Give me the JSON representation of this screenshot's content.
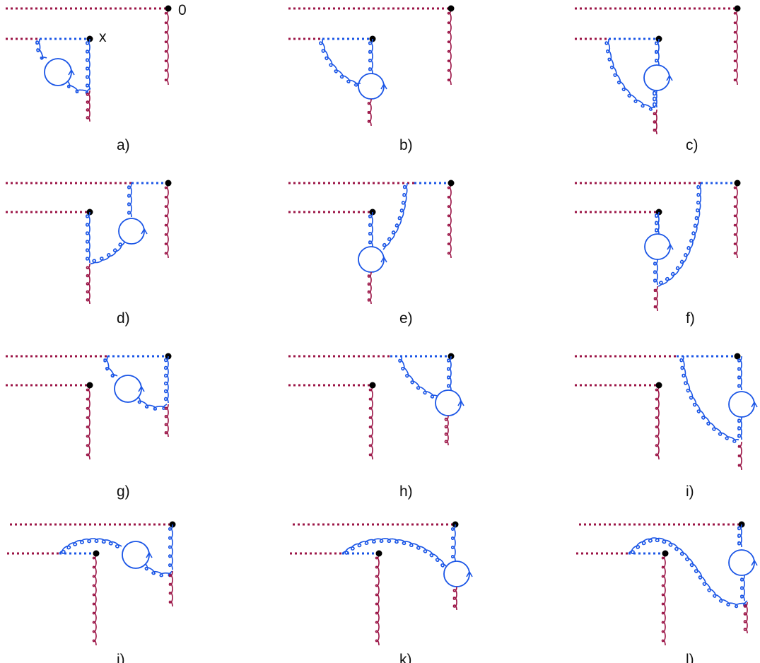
{
  "colors": {
    "dark_line": "#9b1446",
    "blue_line": "#1a55e6",
    "vertex": "#000000"
  },
  "point_labels": {
    "x": "x",
    "zero": "0"
  },
  "panels": [
    {
      "id": "a",
      "label": "a)",
      "variant": "a"
    },
    {
      "id": "b",
      "label": "b)",
      "variant": "b"
    },
    {
      "id": "c",
      "label": "c)",
      "variant": "c"
    },
    {
      "id": "d",
      "label": "d)",
      "variant": "d"
    },
    {
      "id": "e",
      "label": "e)",
      "variant": "e"
    },
    {
      "id": "f",
      "label": "f)",
      "variant": "f"
    },
    {
      "id": "g",
      "label": "g)",
      "variant": "g"
    },
    {
      "id": "h",
      "label": "h)",
      "variant": "h"
    },
    {
      "id": "i",
      "label": "i)",
      "variant": "i"
    },
    {
      "id": "j",
      "label": "j)",
      "variant": "j"
    },
    {
      "id": "k",
      "label": "k)",
      "variant": "k"
    },
    {
      "id": "l",
      "label": "l)",
      "variant": "l"
    }
  ]
}
